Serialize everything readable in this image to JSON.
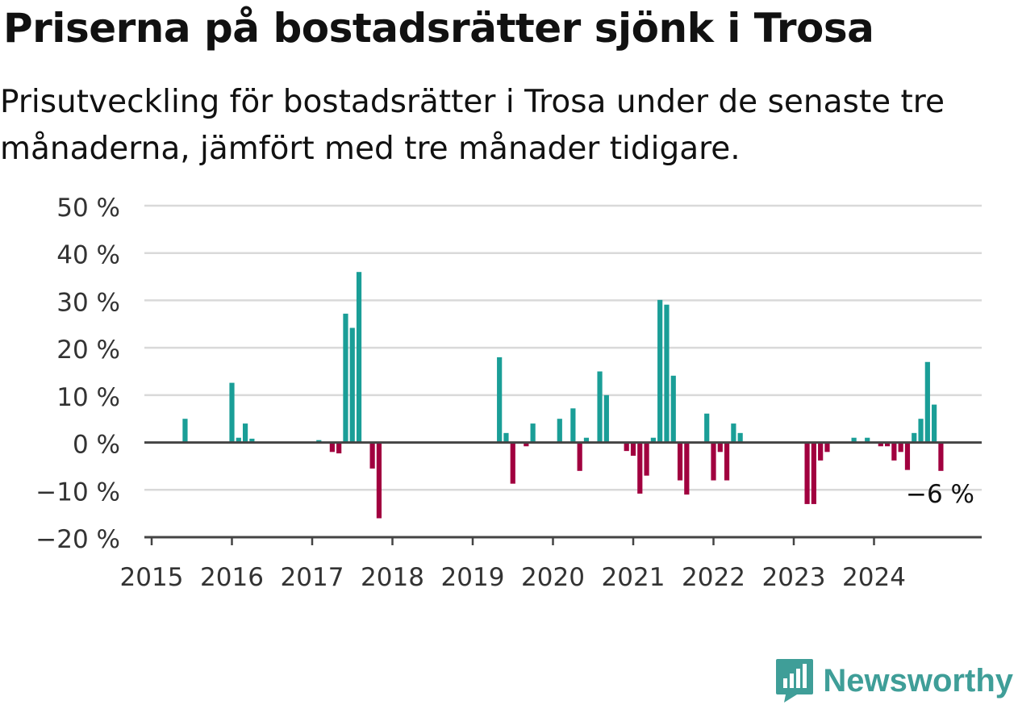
{
  "title": "Priserna på bostadsrätter sjönk i Trosa",
  "subtitle": "Prisutveckling för bostadsrätter i Trosa under de senaste tre månaderna, jämfört med tre månader tidigare.",
  "brand": {
    "name": "Newsworthy",
    "icon": "newsworthy-logo-icon"
  },
  "colors": {
    "positive": "#1a9e97",
    "negative": "#a1003f",
    "grid": "#d9d9d9",
    "axis": "#444444"
  },
  "chart_data": {
    "type": "bar",
    "ylim": [
      -20,
      50
    ],
    "y_ticks": [
      50,
      40,
      30,
      20,
      10,
      0,
      -10,
      -20
    ],
    "y_tick_labels": [
      "50 %",
      "40 %",
      "30 %",
      "20 %",
      "10 %",
      "0 %",
      "−10 %",
      "−20 %"
    ],
    "x_tick_labels": [
      "2015",
      "2016",
      "2017",
      "2018",
      "2019",
      "2020",
      "2021",
      "2022",
      "2023",
      "2024"
    ],
    "grid": true,
    "annotation": "−6 %",
    "series": [
      {
        "values": [
          {
            "x": "2015-06",
            "y": 5
          },
          {
            "x": "2016-01",
            "y": 12.6
          },
          {
            "x": "2016-02",
            "y": 1
          },
          {
            "x": "2016-03",
            "y": 4
          },
          {
            "x": "2016-04",
            "y": 0.8
          },
          {
            "x": "2017-02",
            "y": 0.5
          },
          {
            "x": "2017-04",
            "y": -2
          },
          {
            "x": "2017-05",
            "y": -2.3
          },
          {
            "x": "2017-06",
            "y": 27.2
          },
          {
            "x": "2017-07",
            "y": 24.2
          },
          {
            "x": "2017-08",
            "y": 36
          },
          {
            "x": "2017-10",
            "y": -5.5
          },
          {
            "x": "2017-11",
            "y": -16
          },
          {
            "x": "2019-05",
            "y": 18
          },
          {
            "x": "2019-06",
            "y": 2
          },
          {
            "x": "2019-07",
            "y": -8.7
          },
          {
            "x": "2019-09",
            "y": -0.8
          },
          {
            "x": "2019-10",
            "y": 4
          },
          {
            "x": "2020-02",
            "y": 5
          },
          {
            "x": "2020-04",
            "y": 7.2
          },
          {
            "x": "2020-05",
            "y": -6
          },
          {
            "x": "2020-06",
            "y": 1
          },
          {
            "x": "2020-08",
            "y": 15
          },
          {
            "x": "2020-09",
            "y": 10
          },
          {
            "x": "2020-12",
            "y": -1.8
          },
          {
            "x": "2021-01",
            "y": -2.8
          },
          {
            "x": "2021-02",
            "y": -10.8
          },
          {
            "x": "2021-03",
            "y": -7
          },
          {
            "x": "2021-04",
            "y": 1
          },
          {
            "x": "2021-05",
            "y": 30.1
          },
          {
            "x": "2021-06",
            "y": 29.1
          },
          {
            "x": "2021-07",
            "y": 14.1
          },
          {
            "x": "2021-08",
            "y": -8
          },
          {
            "x": "2021-09",
            "y": -11
          },
          {
            "x": "2021-12",
            "y": 6.1
          },
          {
            "x": "2022-01",
            "y": -8
          },
          {
            "x": "2022-02",
            "y": -2
          },
          {
            "x": "2022-03",
            "y": -8
          },
          {
            "x": "2022-04",
            "y": 4
          },
          {
            "x": "2022-05",
            "y": 2
          },
          {
            "x": "2023-03",
            "y": -13
          },
          {
            "x": "2023-04",
            "y": -13
          },
          {
            "x": "2023-05",
            "y": -3.8
          },
          {
            "x": "2023-06",
            "y": -2
          },
          {
            "x": "2023-10",
            "y": 1
          },
          {
            "x": "2023-12",
            "y": 1
          },
          {
            "x": "2024-02",
            "y": -0.8
          },
          {
            "x": "2024-03",
            "y": -0.8
          },
          {
            "x": "2024-04",
            "y": -3.8
          },
          {
            "x": "2024-05",
            "y": -2
          },
          {
            "x": "2024-06",
            "y": -5.8
          },
          {
            "x": "2024-07",
            "y": 2
          },
          {
            "x": "2024-08",
            "y": 5
          },
          {
            "x": "2024-09",
            "y": 17
          },
          {
            "x": "2024-10",
            "y": 8
          },
          {
            "x": "2024-11",
            "y": -6
          }
        ]
      }
    ]
  }
}
